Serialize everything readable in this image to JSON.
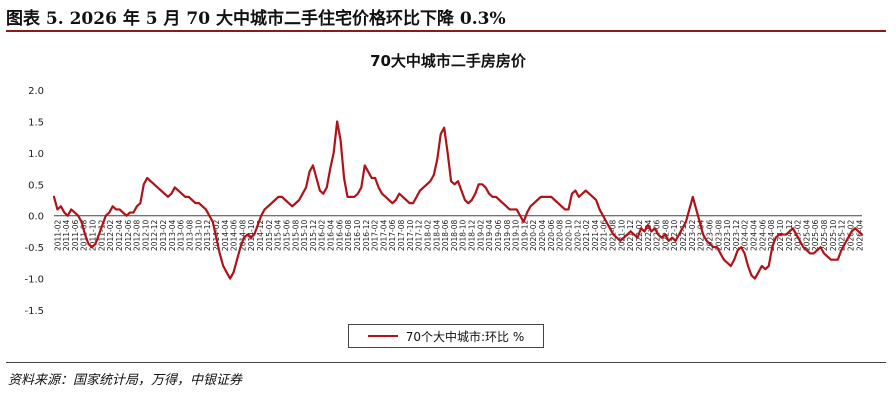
{
  "figure": {
    "title": "图表 5. 2026 年 5 月 70 大中城市二手住宅价格环比下降 0.3%",
    "source": "资料来源：国家统计局，万得，中银证券"
  },
  "colors": {
    "series": "#b01217",
    "axis": "#444444",
    "accent": "#8b1a1a"
  },
  "chart_data": {
    "type": "line",
    "title": "70大中城市二手房房价",
    "xlabel": "",
    "ylabel": "",
    "ylim": [
      -1.5,
      2.0
    ],
    "yticks": [
      2.0,
      1.5,
      1.0,
      0.5,
      0.0,
      -0.5,
      -1.0,
      -1.5
    ],
    "ytick_labels": [
      "2.0",
      "1.5",
      "1.0",
      "0.5",
      "0.0",
      "-0.5",
      "-1.0",
      "-1.5"
    ],
    "grid": false,
    "legend_position": "bottom",
    "x_tick_labels": [
      "2011-02",
      "2011-04",
      "2011-06",
      "2011-08",
      "2011-10",
      "2011-12",
      "2012-02",
      "2012-04",
      "2012-06",
      "2012-08",
      "2012-10",
      "2012-12",
      "2013-02",
      "2013-04",
      "2013-06",
      "2013-08",
      "2013-10",
      "2013-12",
      "2014-02",
      "2014-04",
      "2014-06",
      "2014-08",
      "2014-10",
      "2014-12",
      "2015-02",
      "2015-04",
      "2015-06",
      "2015-08",
      "2015-10",
      "2015-12",
      "2016-02",
      "2016-04",
      "2016-06",
      "2016-08",
      "2016-10",
      "2016-12",
      "2017-02",
      "2017-04",
      "2017-06",
      "2017-08",
      "2017-10",
      "2017-12",
      "2018-02",
      "2018-04",
      "2018-06",
      "2018-08",
      "2018-10",
      "2018-12",
      "2019-02",
      "2019-04",
      "2019-06",
      "2019-08",
      "2019-10",
      "2019-12",
      "2020-02",
      "2020-04",
      "2020-06",
      "2020-08",
      "2020-10",
      "2020-12",
      "2021-02",
      "2021-04",
      "2021-06",
      "2021-08",
      "2021-10",
      "2021-12",
      "2022-02",
      "2022-04",
      "2022-06",
      "2022-08",
      "2022-10",
      "2022-12",
      "2023-02",
      "2023-04",
      "2023-06",
      "2023-08",
      "2023-10",
      "2023-12",
      "2024-02",
      "2024-04",
      "2024-06",
      "2024-08",
      "2024-10",
      "2024-12",
      "2025-02",
      "2025-04",
      "2025-06",
      "2025-08",
      "2025-10",
      "2025-12",
      "2026-02",
      "2026-04"
    ],
    "series": [
      {
        "name": "70个大中城市:环比 %",
        "values": [
          0.3,
          0.1,
          0.15,
          0.05,
          0.0,
          0.1,
          0.05,
          0.0,
          -0.1,
          -0.3,
          -0.45,
          -0.5,
          -0.45,
          -0.3,
          -0.15,
          0.0,
          0.05,
          0.15,
          0.1,
          0.1,
          0.05,
          0.0,
          0.05,
          0.05,
          0.15,
          0.2,
          0.5,
          0.6,
          0.55,
          0.5,
          0.45,
          0.4,
          0.35,
          0.3,
          0.35,
          0.45,
          0.4,
          0.35,
          0.3,
          0.3,
          0.25,
          0.2,
          0.2,
          0.15,
          0.1,
          0.0,
          -0.1,
          -0.35,
          -0.6,
          -0.8,
          -0.9,
          -1.0,
          -0.9,
          -0.7,
          -0.5,
          -0.35,
          -0.3,
          -0.35,
          -0.3,
          -0.15,
          0.0,
          0.1,
          0.15,
          0.2,
          0.25,
          0.3,
          0.3,
          0.25,
          0.2,
          0.15,
          0.2,
          0.25,
          0.35,
          0.45,
          0.7,
          0.8,
          0.6,
          0.4,
          0.35,
          0.45,
          0.75,
          1.0,
          1.5,
          1.2,
          0.6,
          0.3,
          0.3,
          0.3,
          0.35,
          0.45,
          0.8,
          0.7,
          0.6,
          0.6,
          0.45,
          0.35,
          0.3,
          0.25,
          0.2,
          0.25,
          0.35,
          0.3,
          0.25,
          0.2,
          0.2,
          0.3,
          0.4,
          0.45,
          0.5,
          0.55,
          0.65,
          0.9,
          1.3,
          1.4,
          1.0,
          0.55,
          0.5,
          0.55,
          0.4,
          0.25,
          0.2,
          0.25,
          0.35,
          0.5,
          0.5,
          0.45,
          0.35,
          0.3,
          0.3,
          0.25,
          0.2,
          0.15,
          0.1,
          0.1,
          0.1,
          0.0,
          -0.1,
          0.05,
          0.15,
          0.2,
          0.25,
          0.3,
          0.3,
          0.3,
          0.3,
          0.25,
          0.2,
          0.15,
          0.1,
          0.1,
          0.35,
          0.4,
          0.3,
          0.35,
          0.4,
          0.35,
          0.3,
          0.25,
          0.1,
          0.0,
          -0.1,
          -0.2,
          -0.3,
          -0.35,
          -0.4,
          -0.35,
          -0.3,
          -0.25,
          -0.3,
          -0.35,
          -0.2,
          -0.25,
          -0.15,
          -0.25,
          -0.2,
          -0.3,
          -0.35,
          -0.3,
          -0.4,
          -0.35,
          -0.4,
          -0.3,
          -0.2,
          -0.1,
          0.1,
          0.3,
          0.1,
          -0.1,
          -0.3,
          -0.4,
          -0.45,
          -0.5,
          -0.5,
          -0.6,
          -0.7,
          -0.75,
          -0.8,
          -0.7,
          -0.55,
          -0.5,
          -0.6,
          -0.8,
          -0.95,
          -1.0,
          -0.9,
          -0.8,
          -0.85,
          -0.8,
          -0.5,
          -0.35,
          -0.3,
          -0.3,
          -0.3,
          -0.25,
          -0.2,
          -0.3,
          -0.4,
          -0.5,
          -0.55,
          -0.6,
          -0.6,
          -0.55,
          -0.5,
          -0.6,
          -0.65,
          -0.7,
          -0.7,
          -0.7,
          -0.55,
          -0.45,
          -0.35,
          -0.25,
          -0.2,
          -0.25,
          -0.3
        ]
      }
    ]
  }
}
